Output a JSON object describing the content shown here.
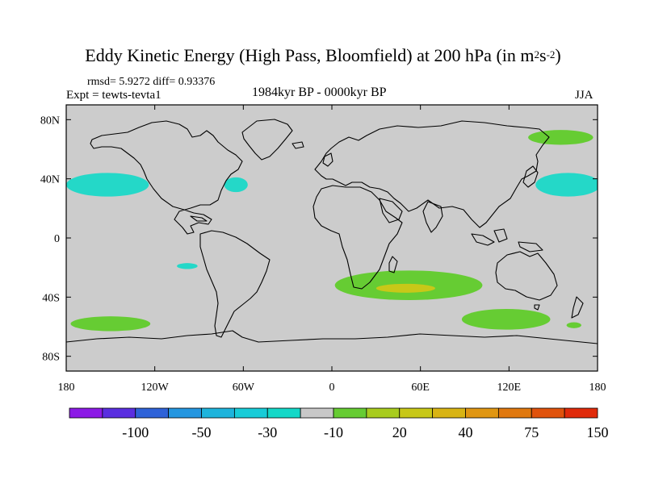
{
  "title": {
    "main": "Eddy Kinetic Energy (High Pass, Bloomfield) at 200 hPa (in m",
    "sup1": "2",
    "mid": "s",
    "sup2": "-2",
    "end": ")"
  },
  "stats": {
    "rmsd_label": "rmsd=",
    "rmsd": "5.9272",
    "diff_label": "diff=",
    "diff": "0.93376"
  },
  "expt": "Expt = tewts-tevta1",
  "period": "1984kyr BP - 0000kyr BP",
  "season": "JJA",
  "axes": {
    "lon_ticks": [
      "180",
      "120W",
      "60W",
      "0",
      "60E",
      "120E",
      "180"
    ],
    "lat_ticks": [
      "80N",
      "40N",
      "0",
      "40S",
      "80S"
    ],
    "lon_range": [
      -180,
      180
    ],
    "lat_range": [
      -90,
      90
    ]
  },
  "colorbar": {
    "labels": [
      "-100",
      "-50",
      "-30",
      "-10",
      "20",
      "40",
      "75",
      "150"
    ],
    "colors": [
      "#8C1AE6",
      "#5A2EE0",
      "#2E62D8",
      "#2496E0",
      "#1EB4DC",
      "#18CCD8",
      "#14D8C8",
      "#C8C8C8",
      "#66CC33",
      "#A8CC1E",
      "#C8C818",
      "#D8B414",
      "#E09612",
      "#E0780E",
      "#E0520C",
      "#E02A0A"
    ]
  },
  "anomalies": [
    {
      "name": "north-pacific-east",
      "color": "#24D8C8",
      "lon": -152,
      "lat": 36,
      "rx": 28,
      "ry": 8
    },
    {
      "name": "north-atlantic",
      "color": "#24D8C8",
      "lon": -65,
      "lat": 36,
      "rx": 8,
      "ry": 5
    },
    {
      "name": "south-pacific-small",
      "color": "#24D8C8",
      "lon": -98,
      "lat": -19,
      "rx": 7,
      "ry": 2
    },
    {
      "name": "north-pacific-west",
      "color": "#24D8C8",
      "lon": 160,
      "lat": 36,
      "rx": 22,
      "ry": 8
    },
    {
      "name": "south-indian-ocean",
      "color": "#66CC33",
      "lon": 52,
      "lat": -32,
      "rx": 50,
      "ry": 10
    },
    {
      "name": "south-indian-ocean-core",
      "color": "#C8C818",
      "lon": 50,
      "lat": -34,
      "rx": 20,
      "ry": 3
    },
    {
      "name": "south-pacific-west",
      "color": "#66CC33",
      "lon": -150,
      "lat": -58,
      "rx": 27,
      "ry": 5
    },
    {
      "name": "south-of-australia",
      "color": "#66CC33",
      "lon": 118,
      "lat": -55,
      "rx": 30,
      "ry": 7
    },
    {
      "name": "north-pacific-arctic",
      "color": "#66CC33",
      "lon": 155,
      "lat": 68,
      "rx": 22,
      "ry": 5
    },
    {
      "name": "southwest-pacific-small",
      "color": "#66CC33",
      "lon": 164,
      "lat": -59,
      "rx": 5,
      "ry": 2
    }
  ]
}
